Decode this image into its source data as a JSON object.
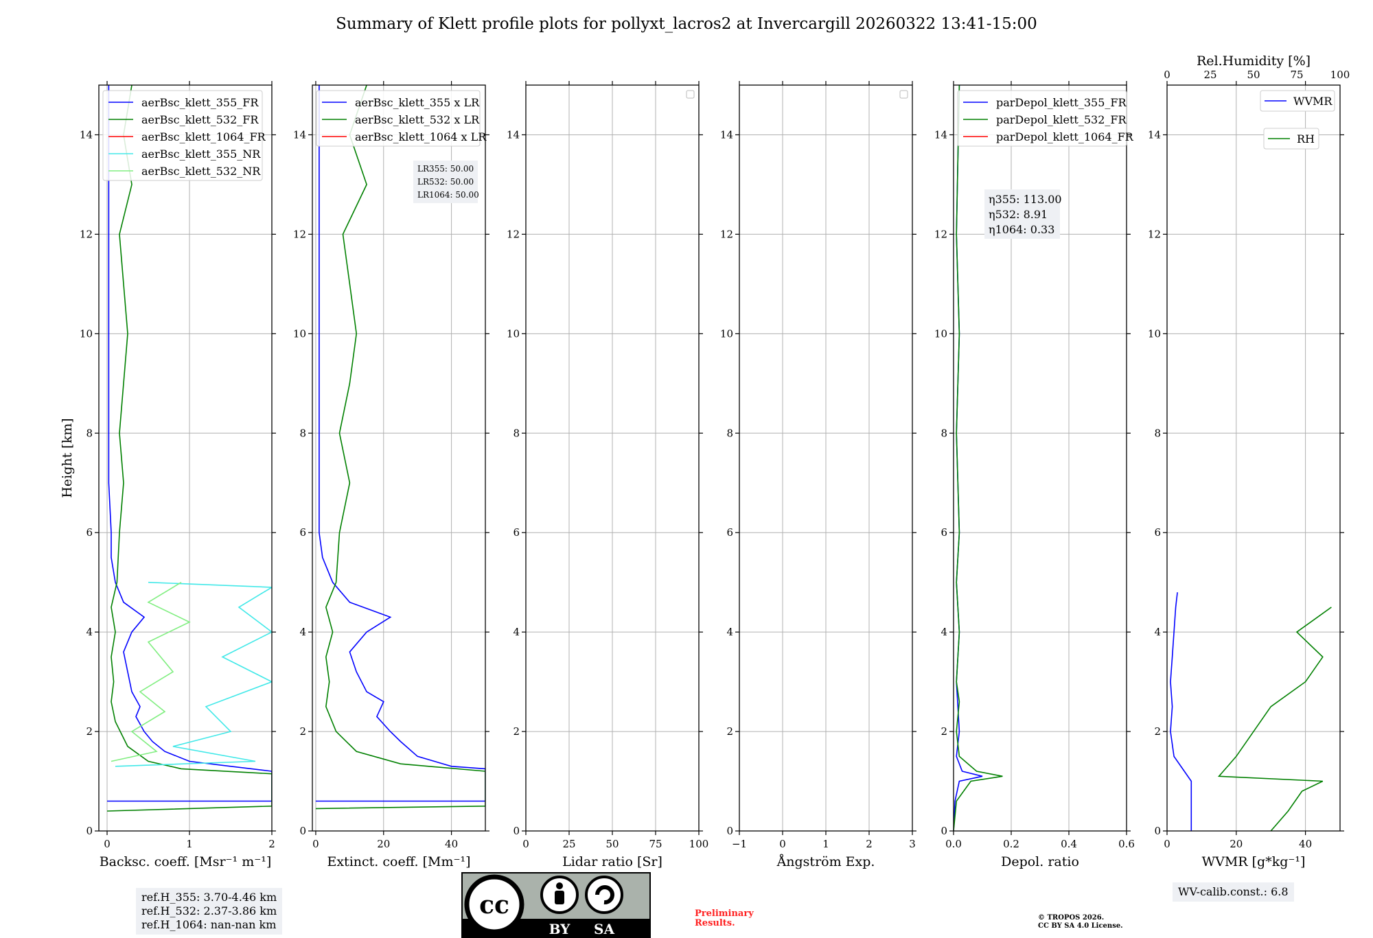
{
  "title": "Summary of Klett profile plots for pollyxt_lacros2 at Invercargill 20260322 13:41-15:00",
  "colors": {
    "c355": "#0000ff",
    "c532": "#008000",
    "c1064": "#ff0000",
    "c355nr": "#40e8e8",
    "c532nr": "#80ee80",
    "grid": "#b0b0b0"
  },
  "chart_data": [
    {
      "type": "line",
      "name": "backscatter",
      "xlabel": "Backsc. coeff. [Msr⁻¹ m⁻¹]",
      "ylabel": "Height [km]",
      "xlim": [
        -0.1,
        2
      ],
      "ylim": [
        0,
        15
      ],
      "xticks": [
        0,
        1,
        2
      ],
      "xtick_labels": [
        "0",
        "1",
        "2"
      ],
      "yticks": [
        0,
        2,
        4,
        6,
        8,
        10,
        12,
        14
      ],
      "ytick_labels": [
        "0",
        "2",
        "4",
        "6",
        "8",
        "10",
        "12",
        "14"
      ],
      "legend": [
        "aerBsc_klett_355_FR",
        "aerBsc_klett_532_FR",
        "aerBsc_klett_1064_FR",
        "aerBsc_klett_355_NR",
        "aerBsc_klett_532_NR"
      ],
      "legend_colors": [
        "#0000ff",
        "#008000",
        "#ff0000",
        "#40e8e8",
        "#80ee80"
      ],
      "series": [
        {
          "name": "aerBsc_klett_355_FR",
          "color": "#0000ff",
          "points": [
            [
              0,
              0.6
            ],
            [
              2,
              0.6
            ],
            [
              2,
              1.2
            ],
            [
              1.5,
              1.3
            ],
            [
              1.0,
              1.4
            ],
            [
              0.7,
              1.6
            ],
            [
              0.55,
              1.8
            ],
            [
              0.45,
              2.0
            ],
            [
              0.35,
              2.3
            ],
            [
              0.4,
              2.5
            ],
            [
              0.3,
              2.8
            ],
            [
              0.25,
              3.2
            ],
            [
              0.2,
              3.6
            ],
            [
              0.3,
              4.0
            ],
            [
              0.45,
              4.3
            ],
            [
              0.2,
              4.6
            ],
            [
              0.1,
              5.0
            ],
            [
              0.05,
              5.5
            ],
            [
              0.05,
              6.0
            ],
            [
              0.02,
              7.0
            ],
            [
              0.02,
              8.0
            ],
            [
              0.02,
              9.0
            ],
            [
              0.02,
              10.0
            ],
            [
              0.02,
              11.0
            ],
            [
              0.02,
              12.0
            ],
            [
              0.02,
              13.0
            ],
            [
              0.02,
              14.0
            ],
            [
              0.02,
              15.0
            ]
          ]
        },
        {
          "name": "aerBsc_klett_532_FR",
          "color": "#008000",
          "points": [
            [
              0,
              0.4
            ],
            [
              2,
              0.5
            ],
            [
              2,
              1.15
            ],
            [
              0.9,
              1.25
            ],
            [
              0.5,
              1.4
            ],
            [
              0.25,
              1.7
            ],
            [
              0.1,
              2.2
            ],
            [
              0.05,
              2.6
            ],
            [
              0.08,
              3.0
            ],
            [
              0.05,
              3.5
            ],
            [
              0.1,
              4.0
            ],
            [
              0.05,
              4.5
            ],
            [
              0.12,
              5.0
            ],
            [
              0.15,
              6.0
            ],
            [
              0.2,
              7.0
            ],
            [
              0.15,
              8.0
            ],
            [
              0.2,
              9.0
            ],
            [
              0.25,
              10.0
            ],
            [
              0.2,
              11.0
            ],
            [
              0.15,
              12.0
            ],
            [
              0.3,
              13.0
            ],
            [
              0.2,
              14.0
            ],
            [
              0.3,
              15.0
            ]
          ]
        },
        {
          "name": "aerBsc_klett_355_NR",
          "color": "#40e8e8",
          "points": [
            [
              0.1,
              1.3
            ],
            [
              1.8,
              1.4
            ],
            [
              0.8,
              1.7
            ],
            [
              1.5,
              2.0
            ],
            [
              1.2,
              2.5
            ],
            [
              2.0,
              3.0
            ],
            [
              1.4,
              3.5
            ],
            [
              2.0,
              4.0
            ],
            [
              1.6,
              4.5
            ],
            [
              2.0,
              4.9
            ],
            [
              0.5,
              5.0
            ]
          ]
        },
        {
          "name": "aerBsc_klett_532_NR",
          "color": "#80ee80",
          "points": [
            [
              0.05,
              1.4
            ],
            [
              0.6,
              1.6
            ],
            [
              0.3,
              2.0
            ],
            [
              0.7,
              2.4
            ],
            [
              0.4,
              2.8
            ],
            [
              0.8,
              3.2
            ],
            [
              0.5,
              3.8
            ],
            [
              1.0,
              4.2
            ],
            [
              0.5,
              4.6
            ],
            [
              0.9,
              5.0
            ]
          ]
        }
      ]
    },
    {
      "type": "line",
      "name": "extinction",
      "xlabel": "Extinct. coeff. [Mm⁻¹]",
      "xlim": [
        -1,
        50
      ],
      "ylim": [
        0,
        15
      ],
      "xticks": [
        0,
        20,
        40
      ],
      "xtick_labels": [
        "0",
        "20",
        "40"
      ],
      "yticks": [
        0,
        2,
        4,
        6,
        8,
        10,
        12,
        14
      ],
      "ytick_labels": [
        "0",
        "2",
        "4",
        "6",
        "8",
        "10",
        "12",
        "14"
      ],
      "legend": [
        "aerBsc_klett_355 x LR",
        "aerBsc_klett_532 x LR",
        "aerBsc_klett_1064 x LR"
      ],
      "legend_colors": [
        "#0000ff",
        "#008000",
        "#ff0000"
      ],
      "annotation": [
        "LR355: 50.00",
        "LR532: 50.00",
        "LR1064: 50.00"
      ],
      "series": [
        {
          "name": "aerBsc_klett_355 x LR",
          "color": "#0000ff",
          "points": [
            [
              0,
              0.6
            ],
            [
              50,
              0.6
            ],
            [
              50,
              1.25
            ],
            [
              40,
              1.3
            ],
            [
              30,
              1.5
            ],
            [
              25,
              1.8
            ],
            [
              22,
              2.0
            ],
            [
              18,
              2.3
            ],
            [
              20,
              2.6
            ],
            [
              15,
              2.8
            ],
            [
              12,
              3.2
            ],
            [
              10,
              3.6
            ],
            [
              15,
              4.0
            ],
            [
              22,
              4.3
            ],
            [
              10,
              4.6
            ],
            [
              5,
              5.0
            ],
            [
              2,
              5.5
            ],
            [
              1,
              6.0
            ],
            [
              1,
              8.0
            ],
            [
              1,
              10.0
            ],
            [
              1,
              12.0
            ],
            [
              1,
              15.0
            ]
          ]
        },
        {
          "name": "aerBsc_klett_532 x LR",
          "color": "#008000",
          "points": [
            [
              0,
              0.45
            ],
            [
              50,
              0.5
            ],
            [
              50,
              1.2
            ],
            [
              25,
              1.35
            ],
            [
              12,
              1.6
            ],
            [
              6,
              2.0
            ],
            [
              3,
              2.5
            ],
            [
              4,
              3.0
            ],
            [
              3,
              3.5
            ],
            [
              5,
              4.0
            ],
            [
              3,
              4.5
            ],
            [
              6,
              5.0
            ],
            [
              7,
              6.0
            ],
            [
              10,
              7.0
            ],
            [
              7,
              8.0
            ],
            [
              10,
              9.0
            ],
            [
              12,
              10.0
            ],
            [
              10,
              11.0
            ],
            [
              8,
              12.0
            ],
            [
              15,
              13.0
            ],
            [
              10,
              14.0
            ],
            [
              15,
              15.0
            ]
          ]
        }
      ]
    },
    {
      "type": "line",
      "name": "lidar_ratio",
      "xlabel": "Lidar ratio [Sr]",
      "xlim": [
        0,
        100
      ],
      "ylim": [
        0,
        15
      ],
      "xticks": [
        0,
        25,
        50,
        75,
        100
      ],
      "xtick_labels": [
        "0",
        "25",
        "50",
        "75",
        "100"
      ],
      "yticks": [
        0,
        2,
        4,
        6,
        8,
        10,
        12,
        14
      ],
      "ytick_labels": [
        "0",
        "2",
        "4",
        "6",
        "8",
        "10",
        "12",
        "14"
      ],
      "series": []
    },
    {
      "type": "line",
      "name": "angstrom",
      "xlabel": "Ångström Exp.",
      "xlim": [
        -1,
        3
      ],
      "ylim": [
        0,
        15
      ],
      "xticks": [
        -1,
        0,
        1,
        2,
        3
      ],
      "xtick_labels": [
        "−1",
        "0",
        "1",
        "2",
        "3"
      ],
      "yticks": [
        0,
        2,
        4,
        6,
        8,
        10,
        12,
        14
      ],
      "ytick_labels": [
        "0",
        "2",
        "4",
        "6",
        "8",
        "10",
        "12",
        "14"
      ],
      "series": []
    },
    {
      "type": "line",
      "name": "depol",
      "xlabel": "Depol. ratio",
      "xlim": [
        0,
        0.6
      ],
      "ylim": [
        0,
        15
      ],
      "xticks": [
        0,
        0.2,
        0.4,
        0.6
      ],
      "xtick_labels": [
        "0.0",
        "0.2",
        "0.4",
        "0.6"
      ],
      "yticks": [
        0,
        2,
        4,
        6,
        8,
        10,
        12,
        14
      ],
      "ytick_labels": [
        "0",
        "2",
        "4",
        "6",
        "8",
        "10",
        "12",
        "14"
      ],
      "legend": [
        "parDepol_klett_355_FR",
        "parDepol_klett_532_FR",
        "parDepol_klett_1064_FR"
      ],
      "legend_colors": [
        "#0000ff",
        "#008000",
        "#ff0000"
      ],
      "annotation": [
        "η355: 113.00",
        "η532: 8.91",
        "η1064: 0.33"
      ],
      "series": [
        {
          "name": "parDepol_klett_355_FR",
          "color": "#0000ff",
          "points": [
            [
              0.0,
              0.0
            ],
            [
              0.005,
              0.6
            ],
            [
              0.02,
              1.0
            ],
            [
              0.1,
              1.1
            ],
            [
              0.03,
              1.2
            ],
            [
              0.01,
              1.5
            ],
            [
              0.02,
              2.0
            ],
            [
              0.01,
              3.0
            ],
            [
              0.02,
              4.0
            ],
            [
              0.01,
              5.0
            ],
            [
              0.02,
              6.0
            ],
            [
              0.01,
              8.0
            ],
            [
              0.02,
              10.0
            ],
            [
              0.01,
              12.0
            ],
            [
              0.02,
              15.0
            ]
          ]
        },
        {
          "name": "parDepol_klett_532_FR",
          "color": "#008000",
          "points": [
            [
              0.0,
              0.0
            ],
            [
              0.01,
              0.6
            ],
            [
              0.06,
              1.0
            ],
            [
              0.17,
              1.1
            ],
            [
              0.08,
              1.2
            ],
            [
              0.02,
              1.5
            ],
            [
              0.01,
              2.0
            ],
            [
              0.02,
              2.6
            ],
            [
              0.01,
              3.0
            ],
            [
              0.02,
              4.0
            ],
            [
              0.01,
              5.0
            ],
            [
              0.02,
              6.0
            ],
            [
              0.01,
              8.0
            ],
            [
              0.02,
              10.0
            ],
            [
              0.01,
              12.0
            ],
            [
              0.02,
              15.0
            ]
          ]
        }
      ]
    },
    {
      "type": "line",
      "name": "wvmr_rh",
      "xlabel": "WVMR [g*kg⁻¹]",
      "xlim": [
        0,
        50
      ],
      "ylim": [
        0,
        15
      ],
      "xticks": [
        0,
        20,
        40
      ],
      "xtick_labels": [
        "0",
        "20",
        "40"
      ],
      "yticks": [
        0,
        2,
        4,
        6,
        8,
        10,
        12,
        14
      ],
      "ytick_labels": [
        "0",
        "2",
        "4",
        "6",
        "8",
        "10",
        "12",
        "14"
      ],
      "x2label": "Rel.Humidity [%]",
      "x2lim": [
        0,
        100
      ],
      "x2ticks": [
        0,
        25,
        50,
        75,
        100
      ],
      "x2tick_labels": [
        "0",
        "25",
        "50",
        "75",
        "100"
      ],
      "legend": [
        "WVMR",
        "RH"
      ],
      "legend_colors": [
        "#0000ff",
        "#008000"
      ],
      "series": [
        {
          "name": "WVMR",
          "color": "#0000ff",
          "points": [
            [
              7,
              0.0
            ],
            [
              7,
              0.5
            ],
            [
              7,
              1.0
            ],
            [
              5,
              1.2
            ],
            [
              2,
              1.5
            ],
            [
              1,
              2.0
            ],
            [
              1.5,
              2.5
            ],
            [
              1,
              3.0
            ],
            [
              1.5,
              3.5
            ],
            [
              2,
              4.0
            ],
            [
              2.5,
              4.5
            ],
            [
              3,
              4.8
            ]
          ]
        },
        {
          "name": "RH",
          "color": "#008000",
          "points": [
            [
              60,
              0.0
            ],
            [
              70,
              0.4
            ],
            [
              78,
              0.8
            ],
            [
              90,
              1.0
            ],
            [
              30,
              1.1
            ],
            [
              40,
              1.5
            ],
            [
              50,
              2.0
            ],
            [
              60,
              2.5
            ],
            [
              80,
              3.0
            ],
            [
              90,
              3.5
            ],
            [
              75,
              4.0
            ],
            [
              95,
              4.5
            ]
          ]
        }
      ]
    }
  ],
  "bottom": {
    "refH": [
      "ref.H_355: 3.70-4.46 km",
      "ref.H_532: 2.37-3.86 km",
      "ref.H_1064: nan-nan km"
    ],
    "license_cc": "cc",
    "license_by": "BY",
    "license_sa": "SA",
    "prelim": [
      "Preliminary",
      "Results."
    ],
    "copyright": [
      "© TROPOS 2026.",
      "CC BY SA 4.0 License."
    ],
    "wv_calib": "WV-calib.const.: 6.8"
  }
}
